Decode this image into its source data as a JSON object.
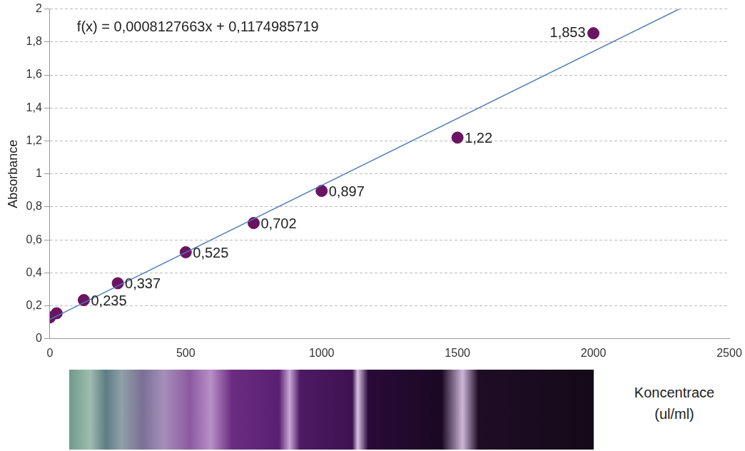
{
  "chart_data": {
    "type": "scatter",
    "x_label": "Koncentrace (ul/ml)",
    "y_label": "Absorbance",
    "x": [
      0,
      25,
      125,
      250,
      500,
      750,
      1000,
      1500,
      2000
    ],
    "values": [
      0.13,
      0.155,
      0.235,
      0.337,
      0.525,
      0.702,
      0.897,
      1.22,
      1.853
    ],
    "value_labels": [
      null,
      null,
      "0,235",
      "0,337",
      "0,525",
      "0,702",
      "0,897",
      "1,22",
      "1,853"
    ],
    "data_labels": true,
    "color": "#6b1462",
    "marker": "circle",
    "trendline": {
      "slope": 0.0008127663,
      "intercept": 0.1174985719,
      "label": "f(x) = 0,0008127663x + 0,1174985719",
      "color": "#4a7db8"
    },
    "xlim": [
      0,
      2500
    ],
    "xticks": [
      0,
      500,
      1000,
      1500,
      2000,
      2500
    ],
    "ylim": [
      0,
      2
    ],
    "yticks": [
      0,
      {
        "value": 0.2,
        "label": "0,2"
      },
      {
        "value": 0.4,
        "label": "0,4"
      },
      {
        "value": 0.6,
        "label": "0,6"
      },
      {
        "value": 0.8,
        "label": "0,8"
      },
      1,
      {
        "value": 1.2,
        "label": "1,2"
      },
      {
        "value": 1.4,
        "label": "1,4"
      },
      {
        "value": 1.6,
        "label": "1,6"
      },
      {
        "value": 1.8,
        "label": "1,8"
      },
      2
    ],
    "grid": "y"
  }
}
